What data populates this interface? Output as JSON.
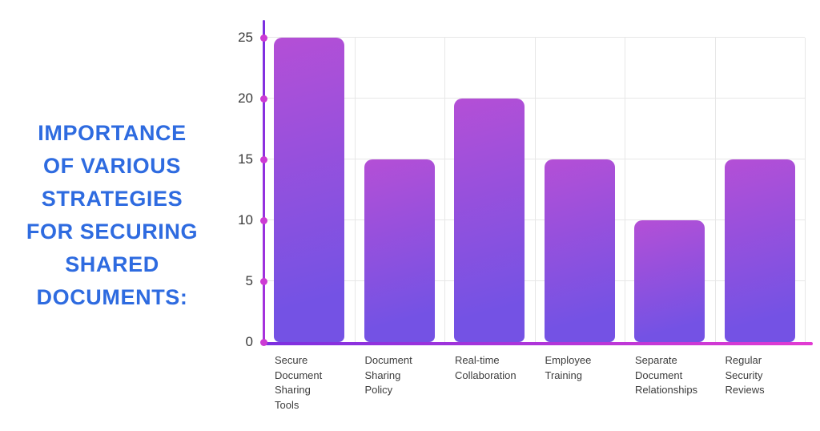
{
  "page": {
    "background": "#ffffff"
  },
  "title": {
    "text": "IMPORTANCE OF VARIOUS STRATEGIES FOR SECURING SHARED DOCUMENTS:",
    "lines": [
      "IMPORTANCE",
      "OF VARIOUS",
      "STRATEGIES",
      "FOR SECURING",
      "SHARED",
      "DOCUMENTS:"
    ],
    "color": "#2E6BE0"
  },
  "chart_data": {
    "type": "bar",
    "title": "Importance of Various Strategies for Securing Shared Documents",
    "categories": [
      "Secure Document Sharing Tools",
      "Document Sharing Policy",
      "Real-time Collaboration",
      "Employee Training",
      "Separate Document Relationships",
      "Regular Security Reviews"
    ],
    "label_lines": [
      [
        "Secure",
        "Document",
        "Sharing",
        "Tools"
      ],
      [
        "Document",
        "Sharing",
        "Policy"
      ],
      [
        "Real-time",
        "Collaboration"
      ],
      [
        "Employee",
        "Training"
      ],
      [
        "Separate",
        "Document",
        "Relationships"
      ],
      [
        "Regular",
        "Security",
        "Reviews"
      ]
    ],
    "values": [
      25,
      15,
      20,
      15,
      10,
      15
    ],
    "xlabel": "",
    "ylabel": "",
    "ylim": [
      0,
      25
    ],
    "yticks": [
      0,
      5,
      10,
      15,
      20,
      25
    ],
    "grid": true,
    "legend": false,
    "colors": {
      "bar_gradient_start": "#B44FD6",
      "bar_gradient_end": "#7452E4",
      "axis_line_start": "#7B2FE0",
      "axis_line_mid": "#A832DC",
      "axis_line_end": "#E23BD2",
      "tick_dot": "#CC3BD4",
      "gridline": "#E7E7E7",
      "tick_label": "#3A3A3A",
      "category_label": "#3D3D3D"
    }
  }
}
